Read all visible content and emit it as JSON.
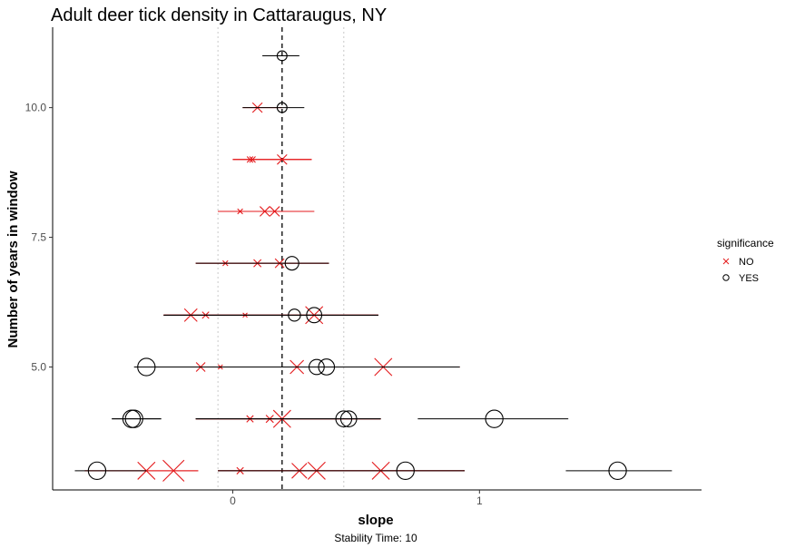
{
  "chart_data": {
    "type": "scatter",
    "title": "Adult deer tick density in Cattaraugus, NY",
    "xlabel": "slope",
    "ylabel": "Number of years in window",
    "caption": "Stability Time: 10",
    "xlim": [
      -0.73,
      1.9
    ],
    "ylim": [
      2.63,
      11.55
    ],
    "x_ticks": [
      0,
      1
    ],
    "x_tick_labels": [
      "0",
      "1"
    ],
    "y_ticks": [
      5,
      7.5,
      10
    ],
    "y_tick_labels": [
      "5.0",
      "7.5",
      "10.0"
    ],
    "reference_line": {
      "x": 0.2,
      "style": "dashed"
    },
    "dotted_lines_x": [
      -0.06,
      0.45
    ],
    "legend": {
      "title": "significance",
      "position": "right",
      "entries": [
        {
          "label": "NO",
          "marker": "x",
          "color": "#e41a1c"
        },
        {
          "label": "YES",
          "marker": "o",
          "color": "#000000"
        }
      ]
    },
    "colors": {
      "NO": "#e41a1c",
      "YES": "#000000"
    },
    "series": [
      {
        "name": "NO",
        "points": [
          {
            "y": 10,
            "x": 0.1,
            "lo": 0.04,
            "hi": 0.2,
            "s": 1
          },
          {
            "y": 9,
            "x": 0.07,
            "lo": 0.0,
            "hi": 0.32,
            "s": 0.5
          },
          {
            "y": 9,
            "x": 0.08,
            "lo": 0.0,
            "hi": 0.32,
            "s": 0.5
          },
          {
            "y": 9,
            "x": 0.2,
            "lo": 0.0,
            "hi": 0.32,
            "s": 1
          },
          {
            "y": 8,
            "x": 0.03,
            "lo": -0.06,
            "hi": 0.33,
            "s": 0.4
          },
          {
            "y": 8,
            "x": 0.13,
            "lo": -0.06,
            "hi": 0.33,
            "s": 1
          },
          {
            "y": 8,
            "x": 0.17,
            "lo": -0.06,
            "hi": 0.33,
            "s": 1
          },
          {
            "y": 7,
            "x": -0.03,
            "lo": -0.15,
            "hi": 0.39,
            "s": 0.4
          },
          {
            "y": 7,
            "x": 0.1,
            "lo": -0.15,
            "hi": 0.39,
            "s": 0.7
          },
          {
            "y": 7,
            "x": 0.19,
            "lo": -0.15,
            "hi": 0.39,
            "s": 0.9
          },
          {
            "y": 6,
            "x": -0.17,
            "lo": -0.28,
            "hi": 0.59,
            "s": 1.4
          },
          {
            "y": 6,
            "x": -0.11,
            "lo": -0.28,
            "hi": 0.59,
            "s": 0.6
          },
          {
            "y": 6,
            "x": 0.05,
            "lo": -0.28,
            "hi": 0.59,
            "s": 0.3
          },
          {
            "y": 6,
            "x": 0.33,
            "lo": -0.28,
            "hi": 0.59,
            "s": 2
          },
          {
            "y": 5,
            "x": -0.13,
            "lo": -0.35,
            "hi": 0.92,
            "s": 0.9
          },
          {
            "y": 5,
            "x": -0.05,
            "lo": -0.35,
            "hi": 0.92,
            "s": 0.3
          },
          {
            "y": 5,
            "x": 0.26,
            "lo": -0.35,
            "hi": 0.92,
            "s": 1.5
          },
          {
            "y": 5,
            "x": 0.61,
            "lo": -0.35,
            "hi": 0.92,
            "s": 2
          },
          {
            "y": 4,
            "x": 0.07,
            "lo": -0.15,
            "hi": 0.6,
            "s": 0.6
          },
          {
            "y": 4,
            "x": 0.15,
            "lo": -0.15,
            "hi": 0.6,
            "s": 0.7
          },
          {
            "y": 4,
            "x": 0.2,
            "lo": -0.15,
            "hi": 0.6,
            "s": 2
          },
          {
            "y": 3,
            "x": -0.35,
            "lo": -0.6,
            "hi": -0.14,
            "s": 2
          },
          {
            "y": 3,
            "x": -0.24,
            "lo": -0.6,
            "hi": -0.14,
            "s": 2.5
          },
          {
            "y": 3,
            "x": 0.03,
            "lo": -0.06,
            "hi": 0.94,
            "s": 0.6
          },
          {
            "y": 3,
            "x": 0.27,
            "lo": -0.06,
            "hi": 0.94,
            "s": 1.7
          },
          {
            "y": 3,
            "x": 0.34,
            "lo": -0.06,
            "hi": 0.94,
            "s": 2
          },
          {
            "y": 3,
            "x": 0.6,
            "lo": -0.06,
            "hi": 0.94,
            "s": 2
          }
        ]
      },
      {
        "name": "YES",
        "points": [
          {
            "y": 11,
            "x": 0.2,
            "lo": 0.12,
            "hi": 0.27,
            "s": 1
          },
          {
            "y": 10,
            "x": 0.2,
            "lo": 0.04,
            "hi": 0.29,
            "s": 1
          },
          {
            "y": 7,
            "x": 0.24,
            "lo": -0.15,
            "hi": 0.39,
            "s": 1.5
          },
          {
            "y": 6,
            "x": 0.25,
            "lo": -0.28,
            "hi": 0.59,
            "s": 1.3
          },
          {
            "y": 6,
            "x": 0.33,
            "lo": -0.28,
            "hi": 0.59,
            "s": 1.7
          },
          {
            "y": 5,
            "x": -0.35,
            "lo": -0.4,
            "hi": -0.26,
            "s": 2
          },
          {
            "y": 5,
            "x": 0.34,
            "lo": -0.35,
            "hi": 0.92,
            "s": 1.7
          },
          {
            "y": 5,
            "x": 0.38,
            "lo": -0.35,
            "hi": 0.92,
            "s": 1.8
          },
          {
            "y": 4,
            "x": -0.41,
            "lo": -0.49,
            "hi": -0.29,
            "s": 2
          },
          {
            "y": 4,
            "x": -0.4,
            "lo": -0.49,
            "hi": -0.29,
            "s": 2
          },
          {
            "y": 4,
            "x": 0.45,
            "lo": -0.15,
            "hi": 0.6,
            "s": 1.8
          },
          {
            "y": 4,
            "x": 0.47,
            "lo": -0.15,
            "hi": 0.6,
            "s": 1.8
          },
          {
            "y": 4,
            "x": 1.06,
            "lo": 0.75,
            "hi": 1.36,
            "s": 2
          },
          {
            "y": 3,
            "x": -0.55,
            "lo": -0.64,
            "hi": -0.35,
            "s": 2
          },
          {
            "y": 3,
            "x": 0.7,
            "lo": -0.06,
            "hi": 0.94,
            "s": 2
          },
          {
            "y": 3,
            "x": 1.56,
            "lo": 1.35,
            "hi": 1.78,
            "s": 2
          }
        ]
      }
    ]
  }
}
